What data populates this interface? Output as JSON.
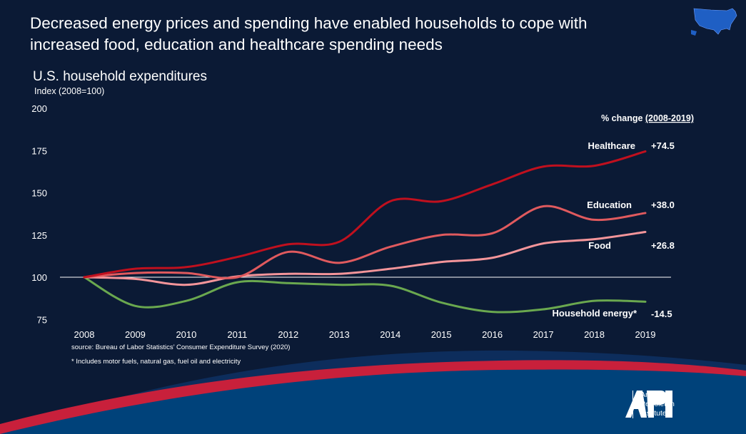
{
  "header": {
    "title_line1": "Decreased energy prices and spending have enabled households to cope with",
    "title_line2": "increased food, education and healthcare spending needs",
    "map_icon": "us-map-icon"
  },
  "chart_data": {
    "type": "line",
    "title": "U.S. household expenditures",
    "ylabel": "Index (2008=100)",
    "ylim": [
      75,
      200
    ],
    "yticks": [
      75,
      100,
      125,
      150,
      175,
      200
    ],
    "x": [
      2008,
      2009,
      2010,
      2011,
      2012,
      2013,
      2014,
      2015,
      2016,
      2017,
      2018,
      2019
    ],
    "reference_line": 100,
    "grid": false,
    "legend_header": "% change ",
    "legend_header_period": "(2008-2019)",
    "series": [
      {
        "name": "Healthcare",
        "change": "+74.5",
        "color": "#c0101e",
        "values": [
          100,
          105,
          106,
          112,
          119.5,
          121,
          145,
          145,
          155,
          165.5,
          166,
          174.5
        ]
      },
      {
        "name": "Education",
        "change": "+38.0",
        "color": "#e05a5e",
        "values": [
          100,
          102.5,
          102.5,
          100,
          115,
          108.5,
          118,
          125,
          126,
          142,
          134,
          138
        ]
      },
      {
        "name": "Food",
        "change": "+26.8",
        "color": "#f4959a",
        "values": [
          100,
          99,
          95.5,
          100.5,
          102,
          102,
          105,
          109,
          111.5,
          120,
          122.5,
          126.8
        ]
      },
      {
        "name": "Household energy*",
        "change": "-14.5",
        "color": "#6aa84f",
        "values": [
          100,
          83,
          86,
          97,
          96.5,
          95.5,
          95,
          85,
          79.5,
          81,
          86,
          85.5
        ]
      }
    ]
  },
  "footer": {
    "source": "source:  Bureau of Labor Statistics’ Consumer Expenditure Survey (2020)",
    "note": "* Includes motor fuels, natural gas, fuel oil and electricity",
    "logo_mark": "API",
    "logo_line1": "American",
    "logo_line2": "Petroleum",
    "logo_line3": "Institute"
  },
  "colors": {
    "background": "#0b1a35",
    "band_red": "#c8203b",
    "band_blue": "#00427a"
  }
}
